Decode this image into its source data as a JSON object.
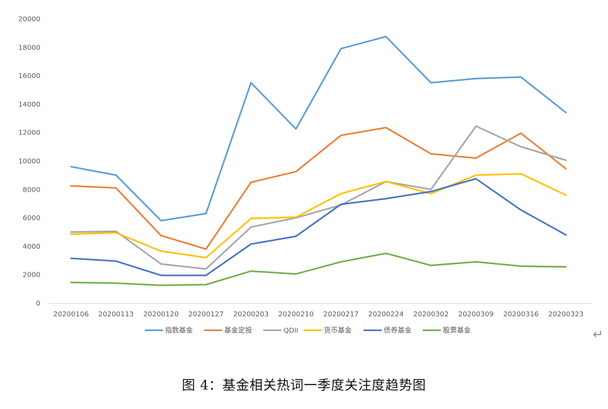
{
  "chart_data": {
    "type": "line",
    "title": "",
    "xlabel": "",
    "ylabel": "",
    "ylim": [
      0,
      20000
    ],
    "yticks": [
      0,
      2000,
      4000,
      6000,
      8000,
      10000,
      12000,
      14000,
      16000,
      18000,
      20000
    ],
    "categories": [
      "20200106",
      "20200113",
      "20200120",
      "20200127",
      "20200203",
      "20200210",
      "20200217",
      "20200224",
      "20200302",
      "20200309",
      "20200316",
      "20200323"
    ],
    "legend_position": "bottom",
    "grid": false,
    "series": [
      {
        "name": "指数基金",
        "color": "#5B9BD5",
        "values": [
          9600,
          9000,
          5800,
          6300,
          15500,
          12250,
          17900,
          18750,
          15500,
          15800,
          15900,
          13400
        ]
      },
      {
        "name": "基金定投",
        "color": "#ED7D31",
        "values": [
          8250,
          8100,
          4750,
          3800,
          8500,
          9250,
          11800,
          12350,
          10500,
          10200,
          11950,
          9450
        ]
      },
      {
        "name": "QDII",
        "color": "#A5A5A5",
        "values": [
          5000,
          5050,
          2750,
          2400,
          5350,
          6000,
          6900,
          8550,
          8000,
          12450,
          11000,
          10050
        ]
      },
      {
        "name": "货币基金",
        "color": "#FFC000",
        "values": [
          4850,
          4950,
          3650,
          3200,
          5950,
          6050,
          7700,
          8550,
          7700,
          9000,
          9100,
          7600
        ]
      },
      {
        "name": "债券基金",
        "color": "#4472C4",
        "values": [
          3150,
          2950,
          1950,
          1950,
          4150,
          4700,
          6950,
          7350,
          7850,
          8750,
          6550,
          4800
        ]
      },
      {
        "name": "股票基金",
        "color": "#70AD47",
        "values": [
          1450,
          1400,
          1250,
          1300,
          2250,
          2050,
          2900,
          3500,
          2650,
          2900,
          2600,
          2550
        ]
      }
    ]
  },
  "caption": "图 4：基金相关热词一季度关注度趋势图",
  "return_mark": "↵"
}
